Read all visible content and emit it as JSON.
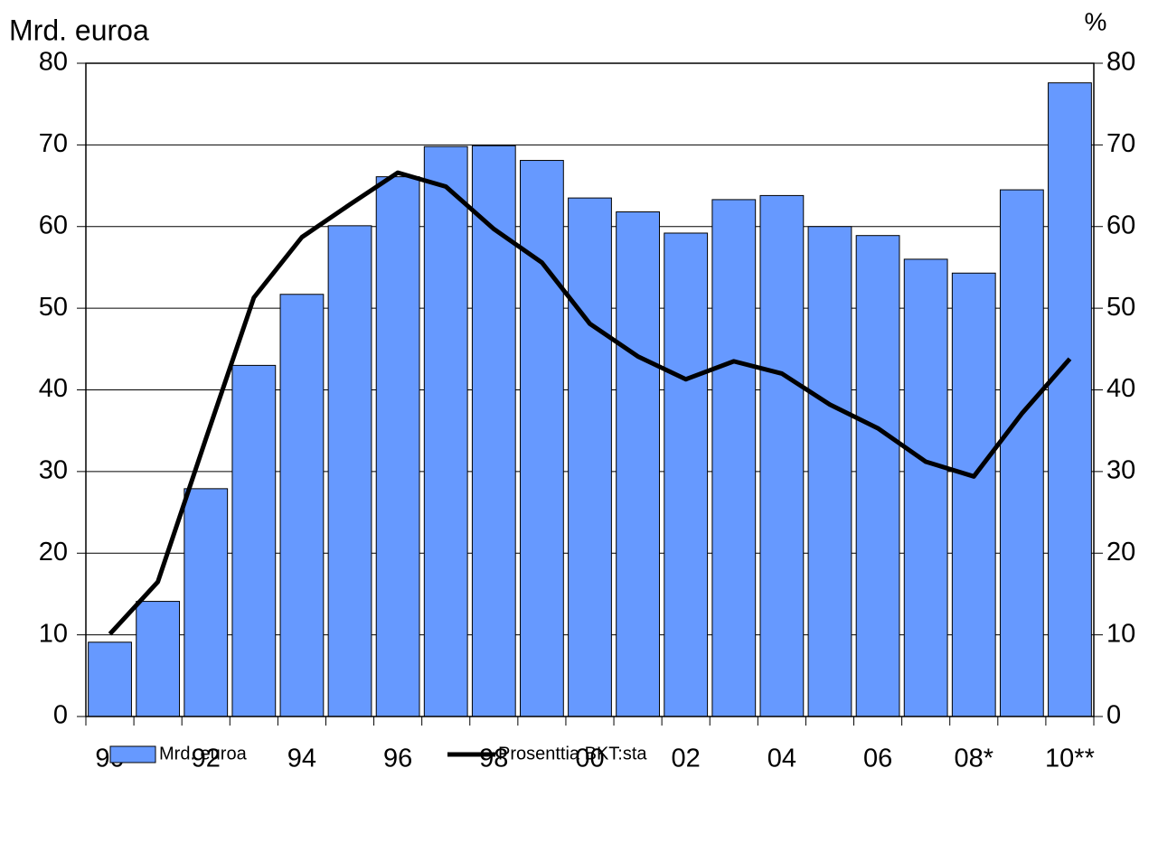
{
  "chart_data": {
    "type": "bar",
    "ylabel": "Mrd. euroa",
    "y2label": "%",
    "categories": [
      "90",
      null,
      "92",
      null,
      "94",
      null,
      "96",
      null,
      "98",
      null,
      "00",
      null,
      "02",
      null,
      "04",
      null,
      "06",
      null,
      "08*",
      null,
      "10**"
    ],
    "series": [
      {
        "name": "Mrd. euroa",
        "type": "bar",
        "color": "#6699ff",
        "values": [
          9.1,
          14.1,
          27.9,
          43,
          51.7,
          60.1,
          66.1,
          69.8,
          69.9,
          68.1,
          63.5,
          61.8,
          59.2,
          63.3,
          63.8,
          60,
          58.9,
          56,
          54.3,
          64.5,
          77.6
        ]
      },
      {
        "name": "Prosenttia BKT:sta",
        "type": "line",
        "axis": "y2",
        "color": "#000000",
        "values": [
          10.1,
          16.5,
          34,
          51.3,
          58.7,
          62.7,
          66.6,
          64.9,
          59.7,
          55.6,
          48.1,
          44.1,
          41.3,
          43.5,
          42,
          38.2,
          35.3,
          31.2,
          29.4,
          37.1,
          43.8
        ]
      }
    ],
    "ylim": [
      0,
      80
    ],
    "yticks": [
      0,
      10,
      20,
      30,
      40,
      50,
      60,
      70,
      80
    ],
    "y2lim": [
      0,
      80
    ],
    "y2ticks": [
      0,
      10,
      20,
      30,
      40,
      50,
      60,
      70,
      80
    ],
    "grid": true,
    "legend": "bottom"
  }
}
